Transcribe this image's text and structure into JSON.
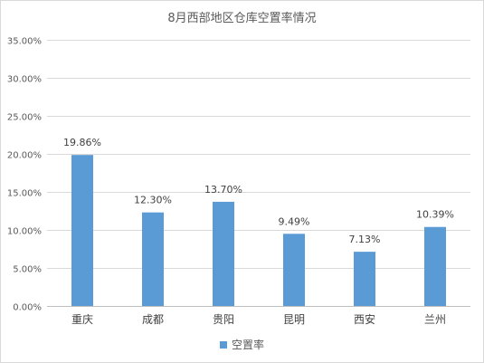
{
  "chart_data": {
    "type": "bar",
    "title": "8月西部地区仓库空置率情况",
    "categories": [
      "重庆",
      "成都",
      "贵阳",
      "昆明",
      "西安",
      "兰州"
    ],
    "series": [
      {
        "name": "空置率",
        "values": [
          19.86,
          12.3,
          13.7,
          9.49,
          7.13,
          10.39
        ],
        "labels": [
          "19.86%",
          "12.30%",
          "13.70%",
          "9.49%",
          "7.13%",
          "10.39%"
        ],
        "color": "#5b9bd5"
      }
    ],
    "y_ticks": [
      "0.00%",
      "5.00%",
      "10.00%",
      "15.00%",
      "20.00%",
      "25.00%",
      "30.00%",
      "35.00%"
    ],
    "ylim": [
      0,
      35
    ],
    "grid": true,
    "legend_position": "bottom"
  }
}
